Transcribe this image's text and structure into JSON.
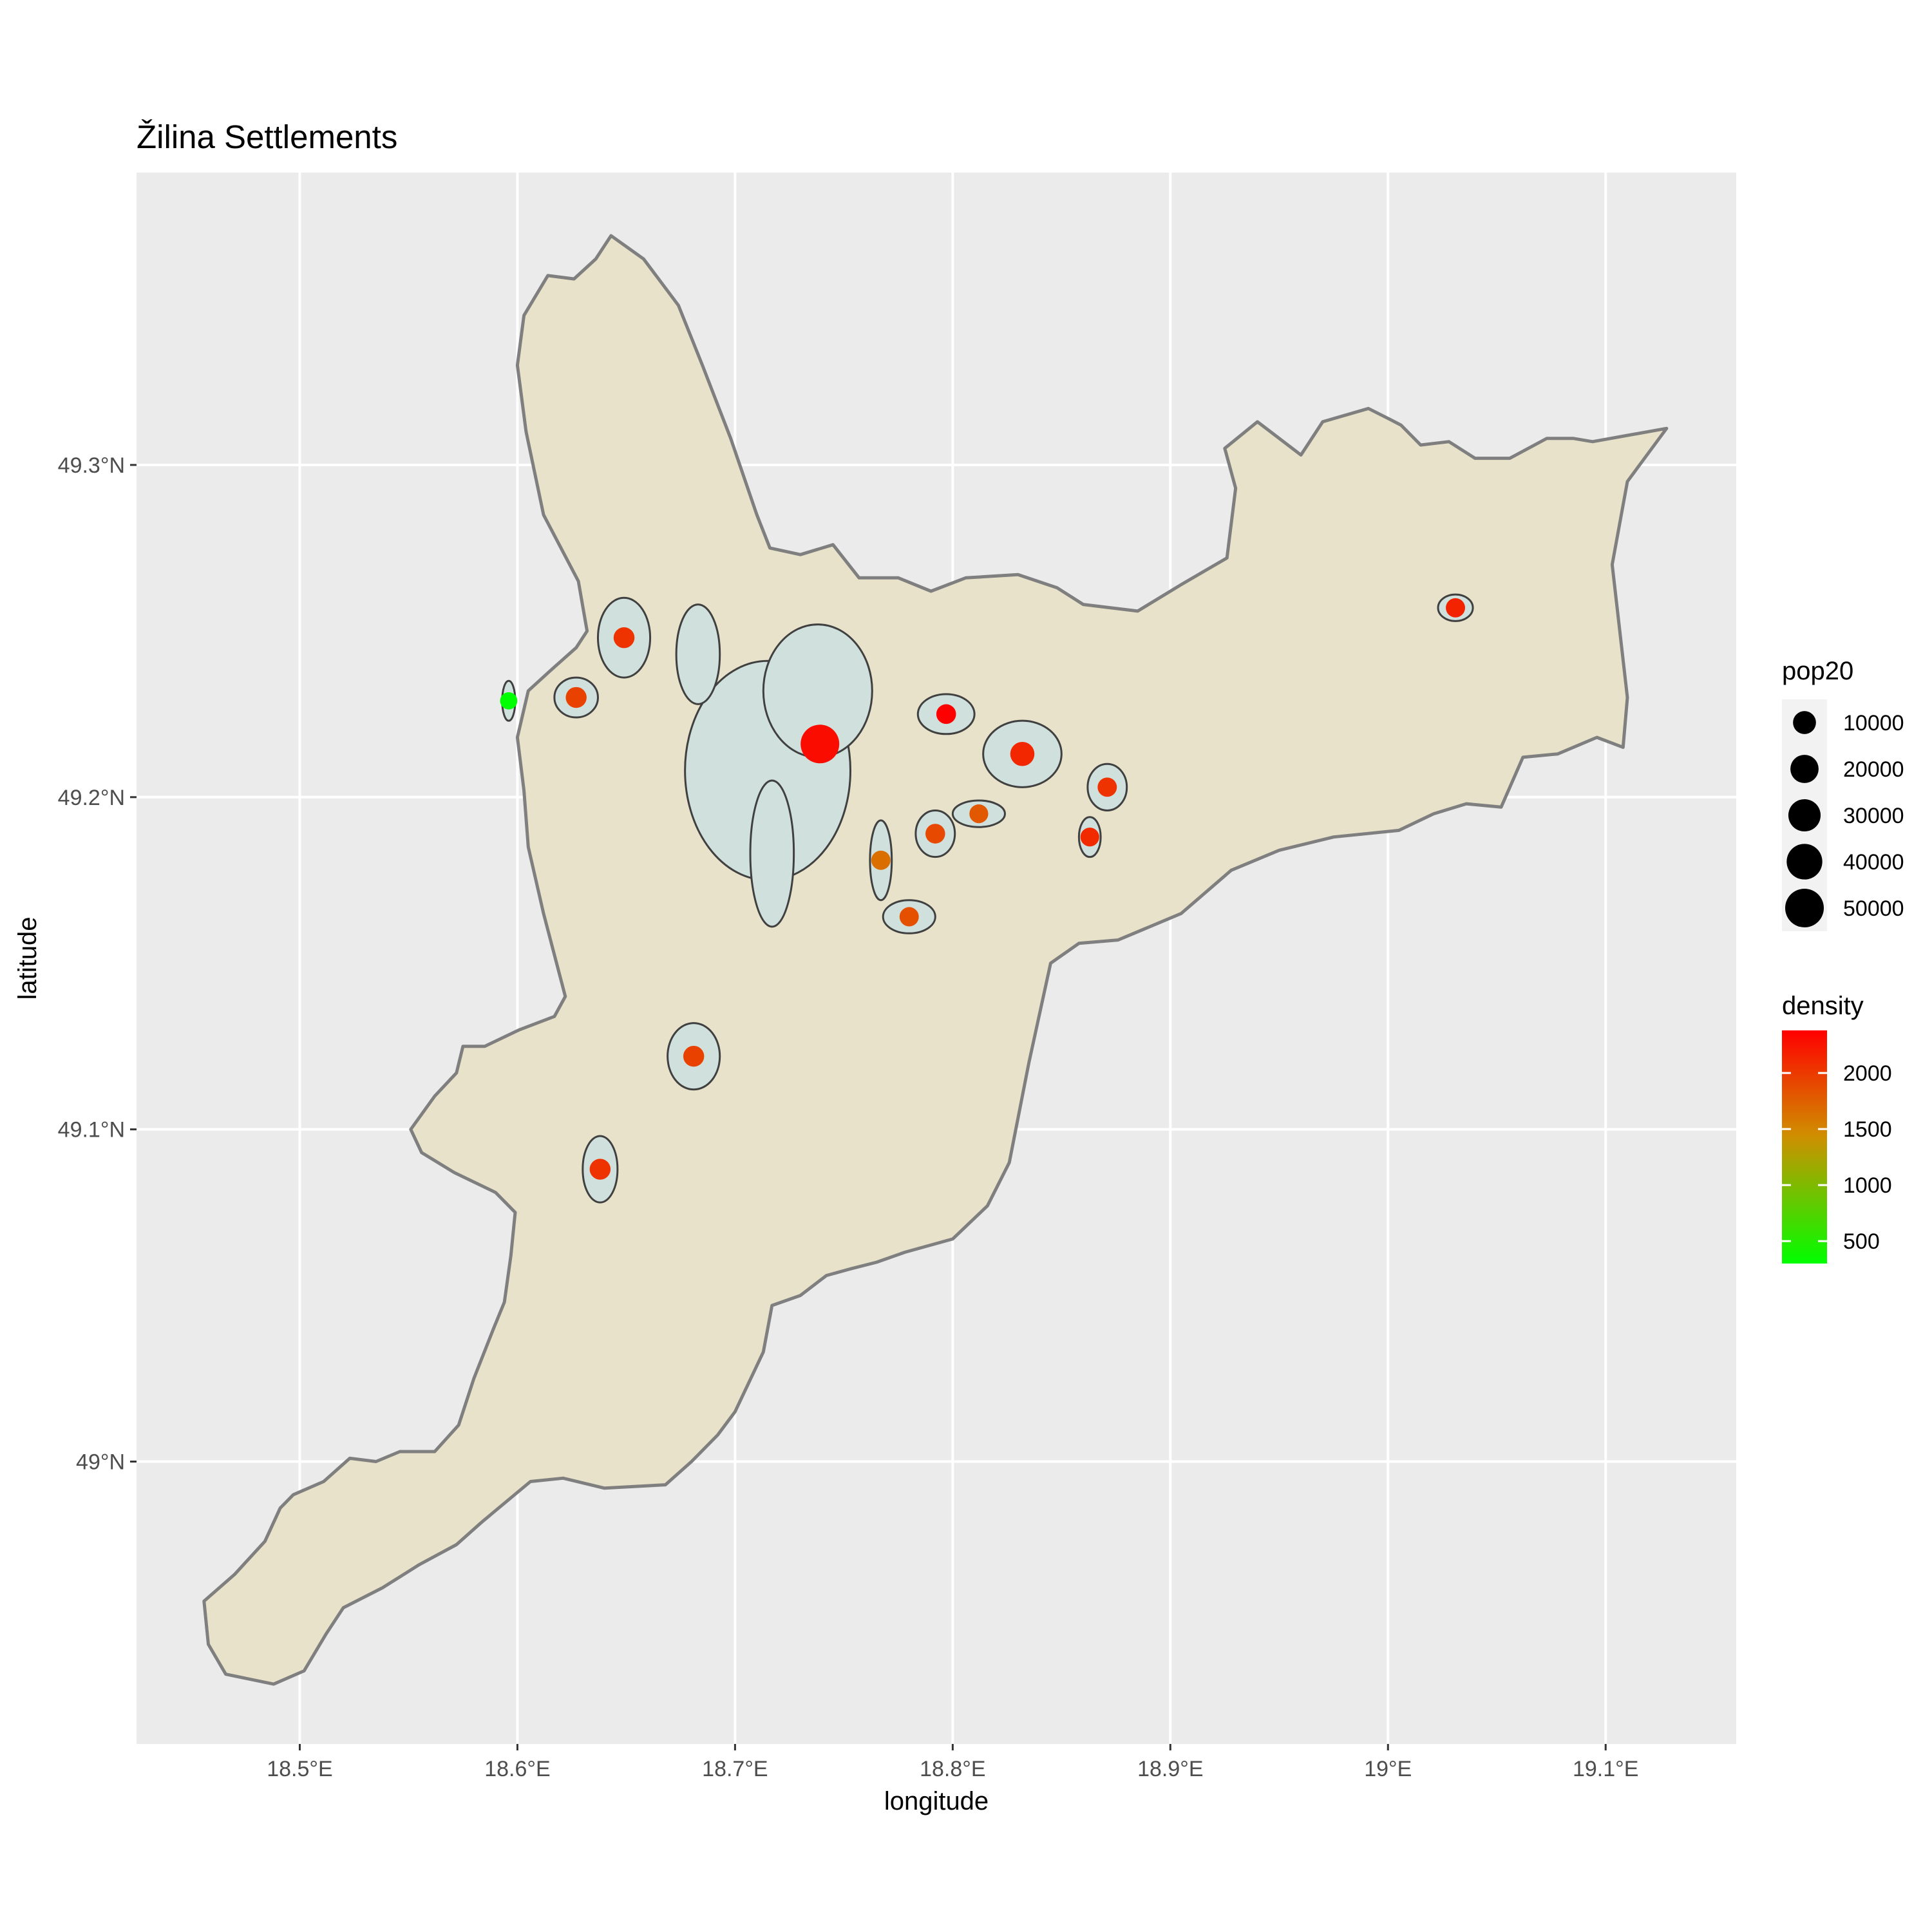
{
  "title": "Žilina Settlements",
  "axes": {
    "xlabel": "longitude",
    "ylabel": "latitude",
    "x_ticks": [
      {
        "value": 18.5,
        "label": "18.5°E"
      },
      {
        "value": 18.6,
        "label": "18.6°E"
      },
      {
        "value": 18.7,
        "label": "18.7°E"
      },
      {
        "value": 18.8,
        "label": "18.8°E"
      },
      {
        "value": 18.9,
        "label": "18.9°E"
      },
      {
        "value": 19.0,
        "label": "19°E"
      },
      {
        "value": 19.1,
        "label": "19.1°E"
      }
    ],
    "y_ticks": [
      {
        "value": 49.0,
        "label": "49°N"
      },
      {
        "value": 49.1,
        "label": "49.1°N"
      },
      {
        "value": 49.2,
        "label": "49.2°N"
      },
      {
        "value": 49.3,
        "label": "49.3°N"
      }
    ],
    "xlim": [
      18.425,
      19.16
    ],
    "ylim": [
      48.915,
      49.388
    ]
  },
  "legends": {
    "size_title": "pop20",
    "size_entries": [
      {
        "label": "10000",
        "value": 10000
      },
      {
        "label": "20000",
        "value": 20000
      },
      {
        "label": "30000",
        "value": 30000
      },
      {
        "label": "40000",
        "value": 40000
      },
      {
        "label": "50000",
        "value": 50000
      }
    ],
    "color_title": "density",
    "color_ticks": [
      {
        "label": "2000",
        "value": 2000
      },
      {
        "label": "1500",
        "value": 1500
      },
      {
        "label": "1000",
        "value": 1000
      },
      {
        "label": "500",
        "value": 500
      }
    ],
    "color_range": [
      300,
      2380
    ],
    "gradient_low": "#00ff00",
    "gradient_mid": "#d08e00",
    "gradient_high": "#ff0000"
  },
  "colors": {
    "panel_bg": "#ebebeb",
    "grid": "#ffffff",
    "region_fill": "#e8e2ca",
    "region_stroke": "#7f7f7f",
    "settlement_fill": "#cfe0dd",
    "settlement_stroke": "#404040"
  },
  "chart_data": {
    "type": "scatter",
    "region": {
      "name": "",
      "outline": [
        [
          18.488,
          48.933
        ],
        [
          18.466,
          48.936
        ],
        [
          18.458,
          48.945
        ],
        [
          18.456,
          48.958
        ],
        [
          18.47,
          48.966
        ],
        [
          18.484,
          48.976
        ],
        [
          18.491,
          48.986
        ],
        [
          18.497,
          48.99
        ],
        [
          18.511,
          48.994
        ],
        [
          18.523,
          49.001
        ],
        [
          18.535,
          49.0
        ],
        [
          18.546,
          49.003
        ],
        [
          18.562,
          49.003
        ],
        [
          18.573,
          49.011
        ],
        [
          18.58,
          49.025
        ],
        [
          18.589,
          49.04
        ],
        [
          18.594,
          49.048
        ],
        [
          18.597,
          49.062
        ],
        [
          18.599,
          49.075
        ],
        [
          18.59,
          49.081
        ],
        [
          18.571,
          49.087
        ],
        [
          18.556,
          49.093
        ],
        [
          18.551,
          49.1
        ],
        [
          18.562,
          49.11
        ],
        [
          18.572,
          49.117
        ],
        [
          18.575,
          49.125
        ],
        [
          18.585,
          49.125
        ],
        [
          18.601,
          49.13
        ],
        [
          18.617,
          49.134
        ],
        [
          18.622,
          49.14
        ],
        [
          18.612,
          49.165
        ],
        [
          18.605,
          49.185
        ],
        [
          18.603,
          49.202
        ],
        [
          18.6,
          49.218
        ],
        [
          18.605,
          49.232
        ],
        [
          18.615,
          49.238
        ],
        [
          18.627,
          49.245
        ],
        [
          18.632,
          49.25
        ],
        [
          18.628,
          49.265
        ],
        [
          18.612,
          49.285
        ],
        [
          18.604,
          49.31
        ],
        [
          18.6,
          49.33
        ],
        [
          18.603,
          49.345
        ],
        [
          18.614,
          49.357
        ],
        [
          18.626,
          49.356
        ],
        [
          18.636,
          49.362
        ],
        [
          18.643,
          49.369
        ],
        [
          18.658,
          49.362
        ],
        [
          18.674,
          49.348
        ],
        [
          18.685,
          49.33
        ],
        [
          18.698,
          49.308
        ],
        [
          18.71,
          49.285
        ],
        [
          18.716,
          49.275
        ],
        [
          18.73,
          49.273
        ],
        [
          18.745,
          49.276
        ],
        [
          18.757,
          49.266
        ],
        [
          18.775,
          49.266
        ],
        [
          18.79,
          49.262
        ],
        [
          18.806,
          49.266
        ],
        [
          18.83,
          49.267
        ],
        [
          18.848,
          49.263
        ],
        [
          18.86,
          49.258
        ],
        [
          18.885,
          49.256
        ],
        [
          18.905,
          49.264
        ],
        [
          18.926,
          49.272
        ],
        [
          18.93,
          49.293
        ],
        [
          18.925,
          49.305
        ],
        [
          18.94,
          49.313
        ],
        [
          18.954,
          49.306
        ],
        [
          18.96,
          49.303
        ],
        [
          18.97,
          49.313
        ],
        [
          18.991,
          49.317
        ],
        [
          19.0,
          49.314
        ],
        [
          19.006,
          49.312
        ],
        [
          19.015,
          49.306
        ],
        [
          19.028,
          49.307
        ],
        [
          19.04,
          49.302
        ],
        [
          19.056,
          49.302
        ],
        [
          19.073,
          49.308
        ],
        [
          19.085,
          49.308
        ],
        [
          19.094,
          49.307
        ],
        [
          19.128,
          49.311
        ],
        [
          19.11,
          49.295
        ],
        [
          19.103,
          49.27
        ],
        [
          19.11,
          49.23
        ],
        [
          19.108,
          49.215
        ],
        [
          19.096,
          49.218
        ],
        [
          19.078,
          49.213
        ],
        [
          19.062,
          49.212
        ],
        [
          19.052,
          49.197
        ],
        [
          19.036,
          49.198
        ],
        [
          19.021,
          49.195
        ],
        [
          19.005,
          49.19
        ],
        [
          18.975,
          49.188
        ],
        [
          18.95,
          49.184
        ],
        [
          18.928,
          49.178
        ],
        [
          18.905,
          49.165
        ],
        [
          18.876,
          49.157
        ],
        [
          18.858,
          49.156
        ],
        [
          18.845,
          49.15
        ],
        [
          18.835,
          49.12
        ],
        [
          18.826,
          49.09
        ],
        [
          18.816,
          49.077
        ],
        [
          18.8,
          49.067
        ],
        [
          18.778,
          49.063
        ],
        [
          18.765,
          49.06
        ],
        [
          18.753,
          49.058
        ],
        [
          18.742,
          49.056
        ],
        [
          18.73,
          49.05
        ],
        [
          18.717,
          49.047
        ],
        [
          18.713,
          49.033
        ],
        [
          18.7,
          49.015
        ],
        [
          18.692,
          49.008
        ],
        [
          18.68,
          49.0
        ],
        [
          18.668,
          48.993
        ],
        [
          18.64,
          48.992
        ],
        [
          18.621,
          48.995
        ],
        [
          18.606,
          48.994
        ],
        [
          18.584,
          48.982
        ],
        [
          18.572,
          48.975
        ],
        [
          18.555,
          48.969
        ],
        [
          18.538,
          48.962
        ],
        [
          18.52,
          48.956
        ],
        [
          18.512,
          48.948
        ],
        [
          18.502,
          48.937
        ],
        [
          18.488,
          48.933
        ]
      ]
    },
    "settlements": [
      {
        "lon": 18.739,
        "lat": 49.216,
        "pop20": 50000,
        "density": 2300
      },
      {
        "lon": 18.832,
        "lat": 49.213,
        "pop20": 12000,
        "density": 2120
      },
      {
        "lon": 18.797,
        "lat": 49.225,
        "pop20": 5500,
        "density": 2380
      },
      {
        "lon": 18.871,
        "lat": 49.203,
        "pop20": 5000,
        "density": 2050
      },
      {
        "lon": 18.863,
        "lat": 49.188,
        "pop20": 4500,
        "density": 2100
      },
      {
        "lon": 18.792,
        "lat": 49.189,
        "pop20": 5500,
        "density": 1900
      },
      {
        "lon": 18.812,
        "lat": 49.195,
        "pop20": 4500,
        "density": 1800
      },
      {
        "lon": 18.767,
        "lat": 49.181,
        "pop20": 5000,
        "density": 1650
      },
      {
        "lon": 18.78,
        "lat": 49.164,
        "pop20": 5000,
        "density": 1850
      },
      {
        "lon": 18.681,
        "lat": 49.122,
        "pop20": 7000,
        "density": 1950
      },
      {
        "lon": 18.638,
        "lat": 49.088,
        "pop20": 7000,
        "density": 2050
      },
      {
        "lon": 18.649,
        "lat": 49.248,
        "pop20": 7000,
        "density": 2050
      },
      {
        "lon": 18.627,
        "lat": 49.23,
        "pop20": 7000,
        "density": 1950
      },
      {
        "lon": 19.031,
        "lat": 49.257,
        "pop20": 5000,
        "density": 2150
      },
      {
        "lon": 18.596,
        "lat": 49.229,
        "pop20": 3000,
        "density": 300
      }
    ],
    "settlement_shapes": [
      {
        "cx": 18.715,
        "cy": 49.208,
        "rx": 0.038,
        "ry": 0.033
      },
      {
        "cx": 18.738,
        "cy": 49.232,
        "rx": 0.025,
        "ry": 0.02
      },
      {
        "cx": 18.717,
        "cy": 49.183,
        "rx": 0.01,
        "ry": 0.022
      },
      {
        "cx": 18.683,
        "cy": 49.243,
        "rx": 0.01,
        "ry": 0.015
      },
      {
        "cx": 18.832,
        "cy": 49.213,
        "rx": 0.018,
        "ry": 0.01
      },
      {
        "cx": 18.797,
        "cy": 49.225,
        "rx": 0.013,
        "ry": 0.006
      },
      {
        "cx": 18.871,
        "cy": 49.203,
        "rx": 0.009,
        "ry": 0.007
      },
      {
        "cx": 18.863,
        "cy": 49.188,
        "rx": 0.005,
        "ry": 0.006
      },
      {
        "cx": 18.792,
        "cy": 49.189,
        "rx": 0.009,
        "ry": 0.007
      },
      {
        "cx": 18.812,
        "cy": 49.195,
        "rx": 0.012,
        "ry": 0.004
      },
      {
        "cx": 18.767,
        "cy": 49.181,
        "rx": 0.005,
        "ry": 0.012
      },
      {
        "cx": 18.78,
        "cy": 49.164,
        "rx": 0.012,
        "ry": 0.005
      },
      {
        "cx": 18.681,
        "cy": 49.122,
        "rx": 0.012,
        "ry": 0.01
      },
      {
        "cx": 18.638,
        "cy": 49.088,
        "rx": 0.008,
        "ry": 0.01
      },
      {
        "cx": 18.649,
        "cy": 49.248,
        "rx": 0.012,
        "ry": 0.012
      },
      {
        "cx": 18.627,
        "cy": 49.23,
        "rx": 0.01,
        "ry": 0.006
      },
      {
        "cx": 19.031,
        "cy": 49.257,
        "rx": 0.008,
        "ry": 0.004
      },
      {
        "cx": 18.596,
        "cy": 49.229,
        "rx": 0.003,
        "ry": 0.006
      }
    ]
  }
}
